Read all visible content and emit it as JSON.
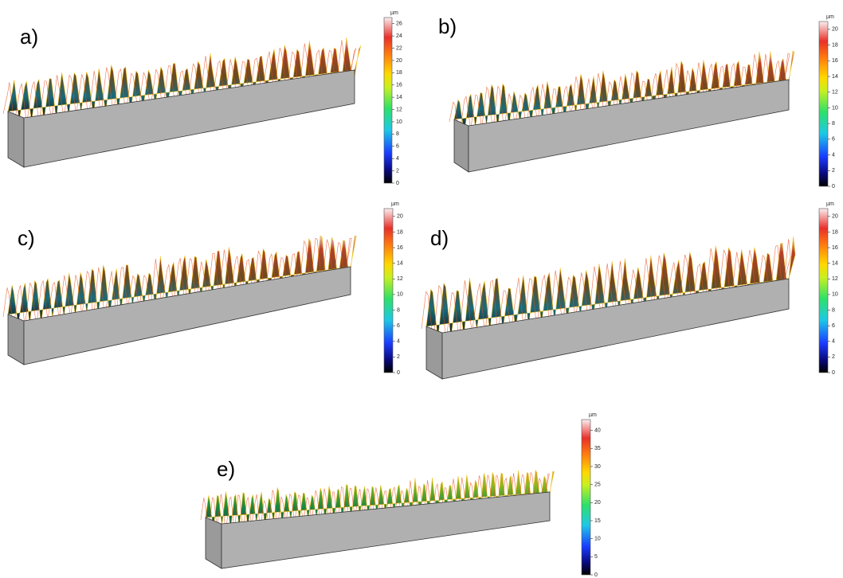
{
  "panels": [
    {
      "label": "a)",
      "unit": "µm",
      "colorbar": {
        "lim": [
          0,
          27
        ],
        "ticks": [
          0,
          2,
          4,
          6,
          8,
          10,
          12,
          14,
          16,
          18,
          20,
          22,
          24,
          26
        ]
      }
    },
    {
      "label": "b)",
      "unit": "µm",
      "colorbar": {
        "lim": [
          0,
          21
        ],
        "ticks": [
          0,
          2,
          4,
          6,
          8,
          10,
          12,
          14,
          16,
          18,
          20
        ]
      }
    },
    {
      "label": "c)",
      "unit": "µm",
      "colorbar": {
        "lim": [
          0,
          21
        ],
        "ticks": [
          0,
          2,
          4,
          6,
          8,
          10,
          12,
          14,
          16,
          18,
          20
        ]
      }
    },
    {
      "label": "d)",
      "unit": "µm",
      "colorbar": {
        "lim": [
          0,
          21
        ],
        "ticks": [
          0,
          2,
          4,
          6,
          8,
          10,
          12,
          14,
          16,
          18,
          20
        ]
      }
    },
    {
      "label": "e)",
      "unit": "µm",
      "colorbar": {
        "lim": [
          0,
          43
        ],
        "ticks": [
          0,
          5,
          10,
          15,
          20,
          25,
          30,
          35,
          40
        ]
      }
    }
  ]
}
